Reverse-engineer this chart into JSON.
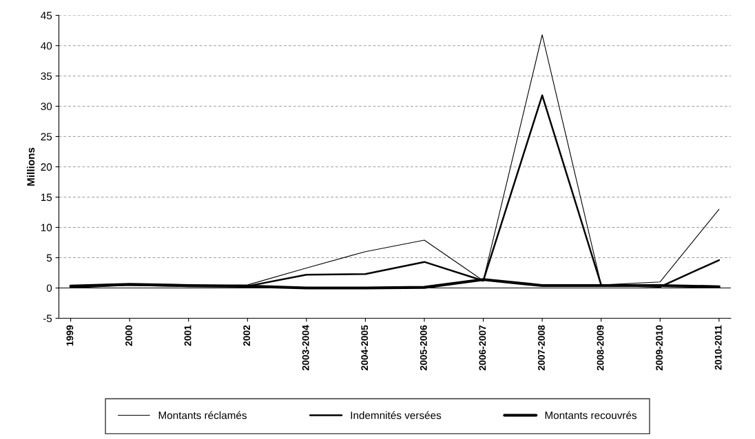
{
  "chart_data": {
    "type": "line",
    "categories": [
      "1999",
      "2000",
      "2001",
      "2002",
      "2003-2004",
      "2004-2005",
      "2005-2006",
      "2006-2007",
      "2007-2008",
      "2008-2009",
      "2009-2010",
      "2010-2011"
    ],
    "series": [
      {
        "name": "Montants réclamés",
        "color": "#000000",
        "values": [
          0.1,
          0.5,
          0.3,
          0.5,
          3.3,
          6.0,
          7.9,
          1.2,
          41.8,
          0.5,
          1.0,
          13.0
        ]
      },
      {
        "name": "Indemnités versées",
        "color": "#000000",
        "values": [
          0.1,
          0.5,
          0.3,
          0.3,
          2.2,
          2.3,
          4.3,
          1.2,
          31.8,
          0.5,
          0.2,
          4.6
        ]
      },
      {
        "name": "Montants recouvrés",
        "color": "#000000",
        "values": [
          0.3,
          0.6,
          0.4,
          0.3,
          0.0,
          0.0,
          0.1,
          1.4,
          0.4,
          0.4,
          0.4,
          0.2
        ]
      }
    ],
    "ylabel": "Millions",
    "ylim": [
      -5,
      45
    ],
    "yticks": [
      -5,
      0,
      5,
      10,
      15,
      20,
      25,
      30,
      35,
      40,
      45
    ],
    "grid": "y",
    "legend": "bottom",
    "marker": "none",
    "line_style": "solid"
  }
}
